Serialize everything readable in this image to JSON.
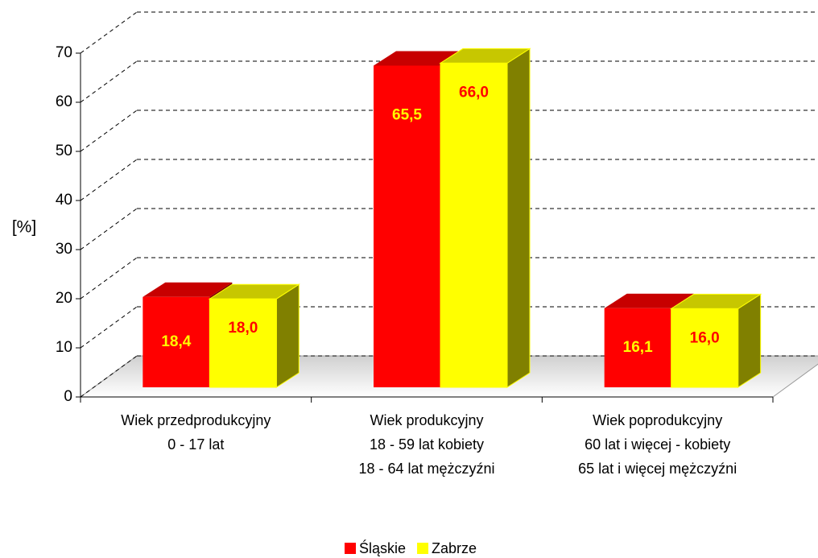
{
  "chart_data": {
    "type": "bar3d",
    "y_label": "[%]",
    "categories": [
      [
        "Wiek przedprodukcyjny",
        "0 - 17 lat"
      ],
      [
        "Wiek produkcyjny",
        "18 - 59 lat kobiety",
        "18 - 64 lat mężczyźni"
      ],
      [
        "Wiek poprodukcyjny",
        "60 lat i więcej - kobiety",
        "65 lat i więcej mężczyźni"
      ]
    ],
    "series": [
      {
        "name": "Śląskie",
        "color": "#ff0000",
        "values": [
          18.4,
          65.5,
          16.1
        ],
        "value_labels": [
          "18,4",
          "65,5",
          "16,1"
        ]
      },
      {
        "name": "Zabrze",
        "color": "#ffff00",
        "values": [
          18.0,
          66.0,
          16.0
        ],
        "value_labels": [
          "18,0",
          "66,0",
          "16,0"
        ]
      }
    ],
    "ylim": [
      0,
      70
    ],
    "yticks": [
      0,
      10,
      20,
      30,
      40,
      50,
      60,
      70
    ],
    "grid": true,
    "legend": "bottom"
  }
}
